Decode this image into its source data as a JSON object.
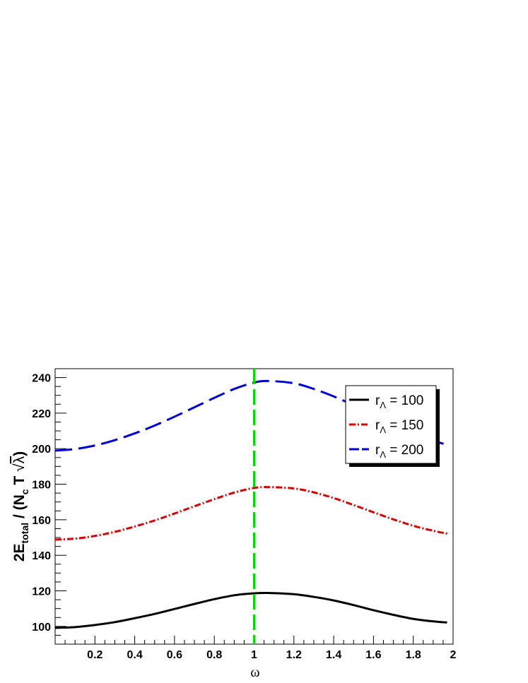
{
  "chart_data": {
    "type": "line",
    "xlabel": "ω",
    "ylabel": {
      "prefix": "2E",
      "subscript": "total",
      "middle": " / (N",
      "subscript2": "c",
      "tail": " T ",
      "sqrt_arg": "λ",
      "close": ")"
    },
    "xlim": [
      0,
      2
    ],
    "ylim": [
      90,
      245
    ],
    "x_ticks": [
      "0.2",
      "0.4",
      "0.6",
      "0.8",
      "1",
      "1.2",
      "1.4",
      "1.6",
      "1.8",
      "2"
    ],
    "y_ticks": [
      "100",
      "120",
      "140",
      "160",
      "180",
      "200",
      "220",
      "240"
    ],
    "vertical_line": {
      "x": 1,
      "color": "#00dd00",
      "style": "dashed"
    },
    "legend": {
      "placement": "top-right"
    },
    "series": [
      {
        "name": "100",
        "legend_prefix": "r",
        "legend_sub": "Λ",
        "legend_eq": " = ",
        "color": "#000000",
        "style": "solid",
        "x": [
          0,
          0.1,
          0.2,
          0.3,
          0.4,
          0.5,
          0.6,
          0.7,
          0.8,
          0.9,
          1.0,
          1.07,
          1.2,
          1.3,
          1.4,
          1.5,
          1.6,
          1.7,
          1.8,
          1.9,
          1.97
        ],
        "y": [
          99.2,
          99.6,
          100.8,
          102.4,
          104.6,
          107.0,
          109.8,
          112.6,
          115.3,
          117.5,
          118.6,
          118.8,
          118.1,
          116.6,
          114.6,
          112.0,
          109.1,
          106.5,
          104.2,
          102.8,
          102.2
        ]
      },
      {
        "name": "150",
        "legend_prefix": "r",
        "legend_sub": "Λ",
        "legend_eq": " = ",
        "color": "#dd0000",
        "style": "dash-dot",
        "x": [
          0,
          0.1,
          0.2,
          0.3,
          0.4,
          0.5,
          0.6,
          0.7,
          0.8,
          0.9,
          1.0,
          1.07,
          1.2,
          1.3,
          1.4,
          1.5,
          1.6,
          1.7,
          1.8,
          1.9,
          1.97
        ],
        "y": [
          148.8,
          149.4,
          150.9,
          153.2,
          156.2,
          159.6,
          163.5,
          167.6,
          171.6,
          175.3,
          177.9,
          178.4,
          177.6,
          175.4,
          172.2,
          168.3,
          164.2,
          160.2,
          156.6,
          153.8,
          152.2
        ]
      },
      {
        "name": "200",
        "legend_prefix": "r",
        "legend_sub": "Λ",
        "legend_eq": " = ",
        "color": "#0000dd",
        "style": "long-dash",
        "x": [
          0,
          0.1,
          0.2,
          0.3,
          0.4,
          0.5,
          0.6,
          0.7,
          0.8,
          0.9,
          1.0,
          1.07,
          1.2,
          1.3,
          1.4,
          1.5,
          1.6,
          1.7,
          1.8,
          1.9,
          1.97
        ],
        "y": [
          198.9,
          199.8,
          201.8,
          204.8,
          208.6,
          213.0,
          218.0,
          223.3,
          228.6,
          233.6,
          237.2,
          238.1,
          236.8,
          233.6,
          229.4,
          224.5,
          219.0,
          213.6,
          208.6,
          204.5,
          202.2
        ]
      }
    ]
  }
}
